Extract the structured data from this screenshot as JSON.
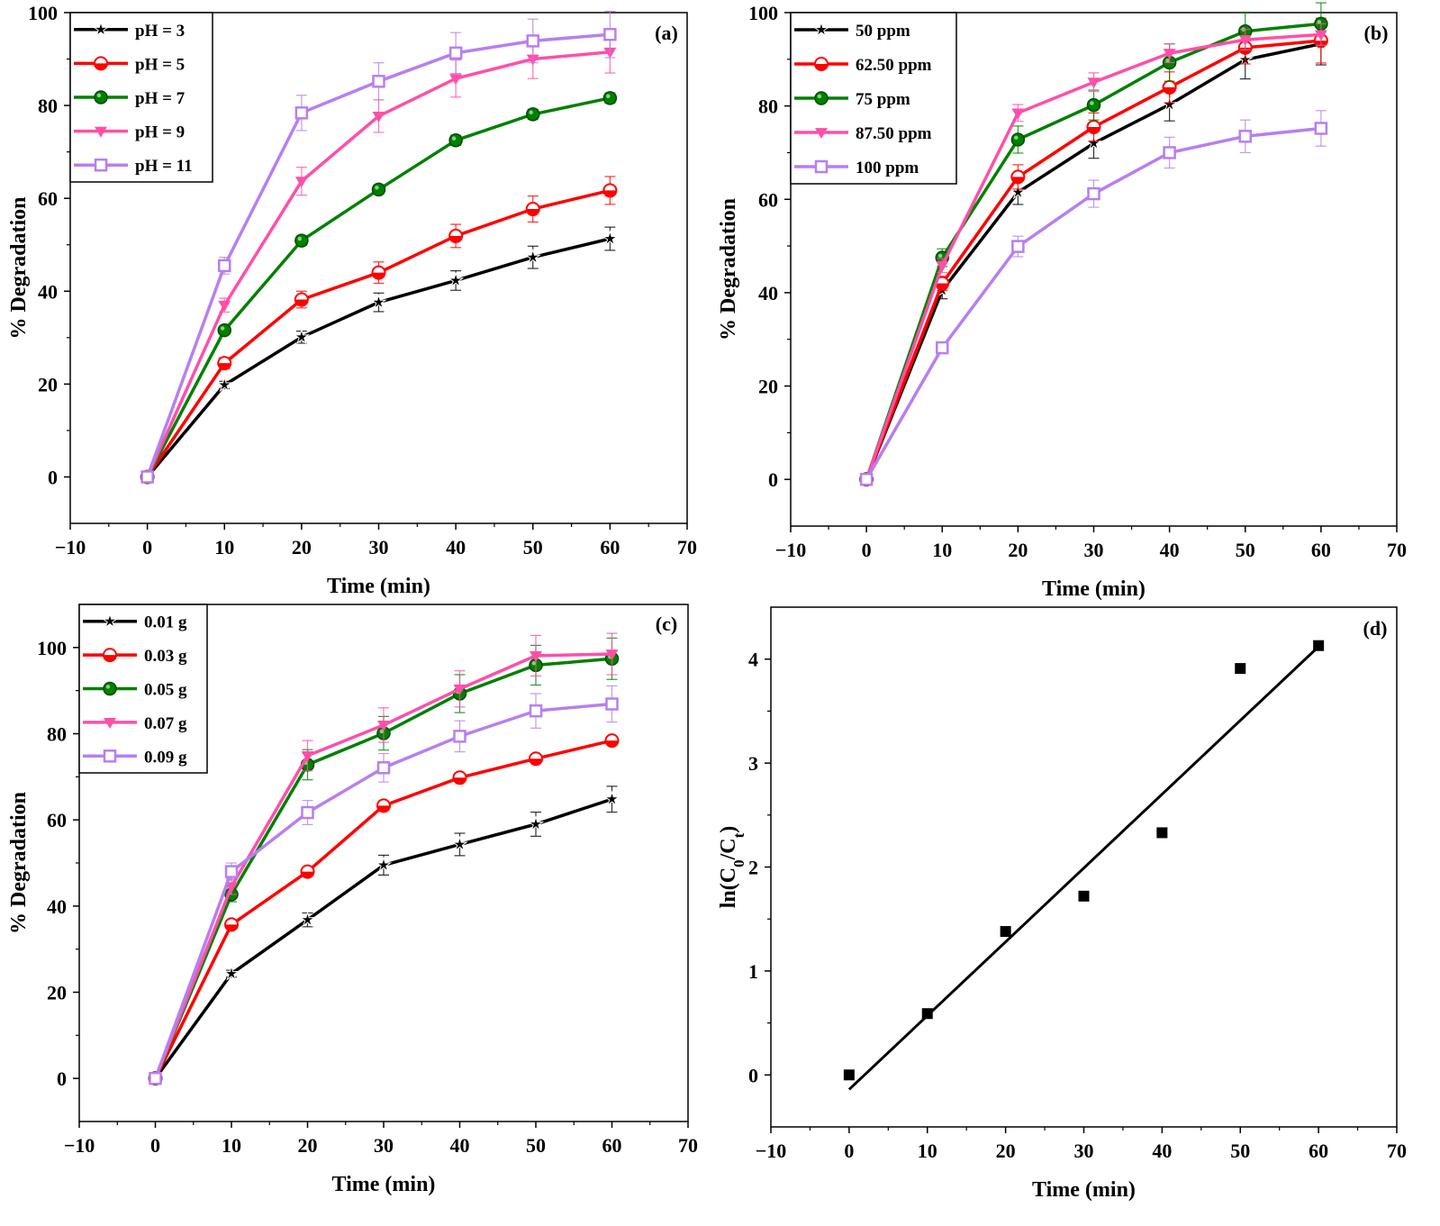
{
  "chart_data": [
    {
      "type": "line",
      "panel_label": "(a)",
      "xlabel": "Time (min)",
      "ylabel": "% Degradation",
      "xlim": [
        -10,
        70
      ],
      "ylim": [
        -10,
        100
      ],
      "xticks": [
        -10,
        0,
        10,
        20,
        30,
        40,
        50,
        60,
        70
      ],
      "yticks": [
        0,
        20,
        40,
        60,
        80,
        100
      ],
      "legend_position": "top-left",
      "x": [
        0,
        10,
        20,
        30,
        40,
        50,
        60
      ],
      "series": [
        {
          "name": "pH = 3",
          "color": "#000000",
          "marker": "star",
          "values": [
            0,
            19.8,
            30.1,
            37.6,
            42.3,
            47.3,
            51.3
          ],
          "errors": [
            0,
            0.8,
            1.3,
            2.0,
            2.1,
            2.4,
            2.5
          ]
        },
        {
          "name": "pH = 5",
          "color": "#ff0000",
          "marker": "half-circle",
          "values": [
            0,
            24.5,
            38.2,
            44.0,
            51.9,
            57.7,
            61.7
          ],
          "errors": [
            0,
            1.2,
            1.8,
            2.3,
            2.5,
            2.8,
            3.0
          ]
        },
        {
          "name": "pH = 7",
          "color": "#008000",
          "marker": "circle",
          "values": [
            0,
            31.6,
            50.9,
            61.9,
            72.5,
            78.1,
            81.6
          ],
          "errors": [
            0,
            0.8,
            1.0,
            1.0,
            1.1,
            1.1,
            1.1
          ]
        },
        {
          "name": "pH = 9",
          "color": "#ff4fa8",
          "marker": "triangle-down",
          "values": [
            0,
            37.0,
            63.7,
            77.7,
            85.8,
            90.0,
            91.5
          ],
          "errors": [
            0,
            1.5,
            3.0,
            3.5,
            4.0,
            4.2,
            4.5
          ]
        },
        {
          "name": "pH = 11",
          "color": "#b77ff0",
          "marker": "square-open",
          "values": [
            0,
            45.5,
            78.4,
            85.2,
            91.3,
            93.9,
            95.3
          ],
          "errors": [
            0,
            1.8,
            3.8,
            4.0,
            4.4,
            4.7,
            5.0
          ]
        }
      ]
    },
    {
      "type": "line",
      "panel_label": "(b)",
      "xlabel": "Time (min)",
      "ylabel": "% Degradation",
      "xlim": [
        -10,
        70
      ],
      "ylim": [
        -10,
        100
      ],
      "xticks": [
        -10,
        0,
        10,
        20,
        30,
        40,
        50,
        60,
        70
      ],
      "yticks": [
        0,
        20,
        40,
        60,
        80,
        100
      ],
      "legend_position": "top-left",
      "x": [
        0,
        10,
        20,
        30,
        40,
        50,
        60
      ],
      "series": [
        {
          "name": "50 ppm",
          "color": "#000000",
          "marker": "star",
          "values": [
            0,
            40.5,
            61.5,
            72.0,
            80.3,
            89.9,
            93.3
          ],
          "errors": [
            0,
            1.8,
            2.6,
            3.2,
            3.5,
            4.1,
            4.5
          ]
        },
        {
          "name": "62.50 ppm",
          "color": "#ff0000",
          "marker": "half-circle",
          "values": [
            0,
            42.0,
            64.8,
            75.5,
            84.0,
            92.5,
            94.0
          ],
          "errors": [
            0,
            1.5,
            2.6,
            3.0,
            3.3,
            3.5,
            4.8
          ]
        },
        {
          "name": "75 ppm",
          "color": "#008000",
          "marker": "circle",
          "values": [
            0,
            47.5,
            72.8,
            80.2,
            89.3,
            96.0,
            97.6
          ],
          "errors": [
            0,
            1.9,
            2.9,
            3.2,
            4.0,
            4.1,
            4.5
          ]
        },
        {
          "name": "87.50 ppm",
          "color": "#ff4fa8",
          "marker": "triangle-down",
          "values": [
            0,
            45.8,
            78.5,
            85.1,
            91.3,
            94.2,
            95.3
          ],
          "errors": [
            0,
            1.5,
            1.8,
            2.0,
            2.0,
            2.2,
            2.3
          ]
        },
        {
          "name": "100 ppm",
          "color": "#b77ff0",
          "marker": "square-open",
          "values": [
            0,
            28.2,
            49.9,
            61.2,
            70.0,
            73.5,
            75.2
          ],
          "errors": [
            0,
            1.0,
            2.2,
            2.9,
            3.3,
            3.5,
            3.8
          ]
        }
      ]
    },
    {
      "type": "line",
      "panel_label": "(c)",
      "xlabel": "Time (min)",
      "ylabel": "% Degradation",
      "xlim": [
        -10,
        70
      ],
      "ylim": [
        -10,
        110
      ],
      "xticks": [
        -10,
        0,
        10,
        20,
        30,
        40,
        50,
        60,
        70
      ],
      "yticks": [
        0,
        20,
        40,
        60,
        80,
        100
      ],
      "legend_position": "top-left",
      "x": [
        0,
        10,
        20,
        30,
        40,
        50,
        60
      ],
      "series": [
        {
          "name": "0.01 g",
          "color": "#000000",
          "marker": "star",
          "values": [
            0,
            24.3,
            36.8,
            49.5,
            54.3,
            59.0,
            64.8
          ],
          "errors": [
            0,
            0.8,
            1.6,
            2.3,
            2.6,
            2.8,
            3.0
          ]
        },
        {
          "name": "0.03 g",
          "color": "#ff0000",
          "marker": "half-circle",
          "values": [
            0,
            35.7,
            48.0,
            63.3,
            69.8,
            74.2,
            78.4
          ],
          "errors": [
            0,
            0.8,
            0.8,
            0.8,
            0.8,
            0.8,
            0.8
          ]
        },
        {
          "name": "0.05 g",
          "color": "#008000",
          "marker": "circle",
          "values": [
            0,
            42.7,
            72.8,
            80.1,
            89.3,
            95.9,
            97.4
          ],
          "errors": [
            0,
            1.7,
            3.5,
            3.9,
            4.4,
            4.6,
            4.8
          ]
        },
        {
          "name": "0.07 g",
          "color": "#ff4fa8",
          "marker": "triangle-down",
          "values": [
            0,
            44.5,
            74.9,
            82.0,
            90.4,
            98.1,
            98.5
          ],
          "errors": [
            0,
            1.8,
            3.5,
            4.0,
            4.2,
            4.7,
            4.8
          ]
        },
        {
          "name": "0.09 g",
          "color": "#b77ff0",
          "marker": "square-open",
          "values": [
            0,
            48.0,
            61.7,
            72.1,
            79.4,
            85.3,
            86.9
          ],
          "errors": [
            0,
            2.0,
            2.8,
            3.3,
            3.6,
            4.0,
            4.2
          ]
        }
      ]
    },
    {
      "type": "scatter",
      "panel_label": "(d)",
      "xlabel": "Time (min)",
      "ylabel": "ln(C0/Ct)",
      "ylabel_parts": {
        "prefix": "ln(C",
        "sub1": "0",
        "middle": "/C",
        "sub2": "t",
        "suffix": ")"
      },
      "xlim": [
        -10,
        70
      ],
      "ylim": [
        -0.5,
        4.5
      ],
      "xticks": [
        -10,
        0,
        10,
        20,
        30,
        40,
        50,
        60,
        70
      ],
      "yticks": [
        0,
        1,
        2,
        3,
        4
      ],
      "x": [
        0,
        10,
        20,
        30,
        40,
        50,
        60
      ],
      "series": [
        {
          "color": "#000000",
          "marker": "square-filled",
          "values": [
            0.0,
            0.59,
            1.38,
            1.72,
            2.33,
            3.91,
            4.13
          ]
        }
      ],
      "fit_line": {
        "color": "#000000",
        "x": [
          0,
          60
        ],
        "y": [
          -0.14,
          4.12
        ]
      }
    }
  ]
}
